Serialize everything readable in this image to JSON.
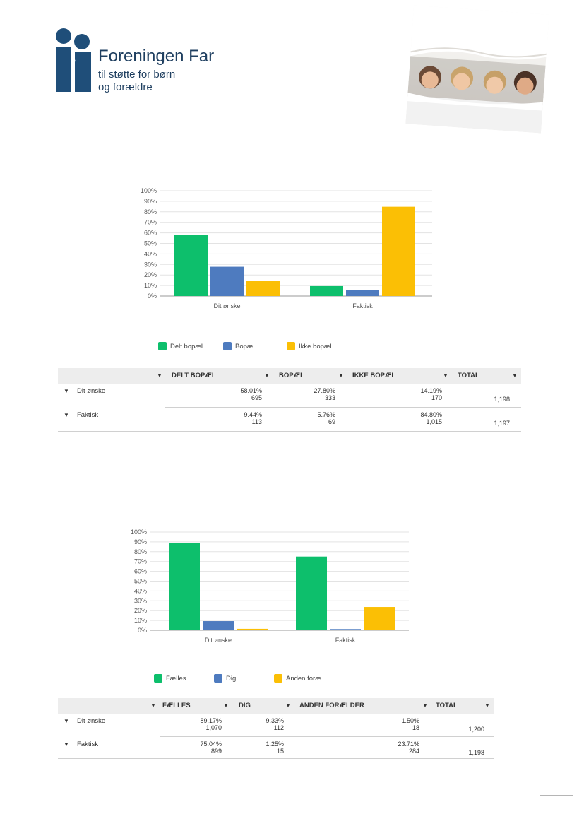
{
  "logo": {
    "name": "Foreningen Far",
    "line1": "til støtte for børn",
    "line2": "og forældre",
    "color": "#1f4e79"
  },
  "photo": {
    "description_icon": "family-photo"
  },
  "colors": {
    "green": "#0dbf6c",
    "blue": "#4e7bbf",
    "yellow": "#fbbf05"
  },
  "chart_data": [
    {
      "type": "bar",
      "categories": [
        "Dit ønske",
        "Faktisk"
      ],
      "series": [
        {
          "name": "Delt bopæl",
          "values": [
            58.01,
            9.44
          ],
          "color": "#0dbf6c"
        },
        {
          "name": "Bopæl",
          "values": [
            27.8,
            5.76
          ],
          "color": "#4e7bbf"
        },
        {
          "name": "Ikke bopæl",
          "values": [
            14.19,
            84.8
          ],
          "color": "#fbbf05"
        }
      ],
      "yticks": [
        "0%",
        "10%",
        "20%",
        "30%",
        "40%",
        "50%",
        "60%",
        "70%",
        "80%",
        "90%",
        "100%"
      ],
      "ylim": [
        0,
        100
      ],
      "grid": true,
      "legend": "bottom"
    },
    {
      "type": "bar",
      "categories": [
        "Dit ønske",
        "Faktisk"
      ],
      "series": [
        {
          "name": "Fælles",
          "values": [
            89.17,
            75.04
          ],
          "color": "#0dbf6c"
        },
        {
          "name": "Dig",
          "values": [
            9.33,
            1.25
          ],
          "color": "#4e7bbf"
        },
        {
          "name": "Anden forælder",
          "values": [
            1.5,
            23.71
          ],
          "color": "#fbbf05"
        }
      ],
      "legend_labels": [
        "Fælles",
        "Dig",
        "Anden foræ..."
      ],
      "yticks": [
        "0%",
        "10%",
        "20%",
        "30%",
        "40%",
        "50%",
        "60%",
        "70%",
        "80%",
        "90%",
        "100%"
      ],
      "ylim": [
        0,
        100
      ],
      "grid": true,
      "legend": "bottom"
    }
  ],
  "table1": {
    "headers": [
      "DELT BOPÆL",
      "BOPÆL",
      "IKKE BOPÆL",
      "TOTAL"
    ],
    "rows": [
      {
        "label": "Dit ønske",
        "cells": [
          [
            "58.01%",
            "695"
          ],
          [
            "27.80%",
            "333"
          ],
          [
            "14.19%",
            "170"
          ]
        ],
        "total": "1,198"
      },
      {
        "label": "Faktisk",
        "cells": [
          [
            "9.44%",
            "113"
          ],
          [
            "5.76%",
            "69"
          ],
          [
            "84.80%",
            "1,015"
          ]
        ],
        "total": "1,197"
      }
    ]
  },
  "table2": {
    "headers": [
      "FÆLLES",
      "DIG",
      "ANDEN FORÆLDER",
      "TOTAL"
    ],
    "rows": [
      {
        "label": "Dit ønske",
        "cells": [
          [
            "89.17%",
            "1,070"
          ],
          [
            "9.33%",
            "112"
          ],
          [
            "1.50%",
            "18"
          ]
        ],
        "total": "1,200"
      },
      {
        "label": "Faktisk",
        "cells": [
          [
            "75.04%",
            "899"
          ],
          [
            "1.25%",
            "15"
          ],
          [
            "23.71%",
            "284"
          ]
        ],
        "total": "1,198"
      }
    ]
  }
}
